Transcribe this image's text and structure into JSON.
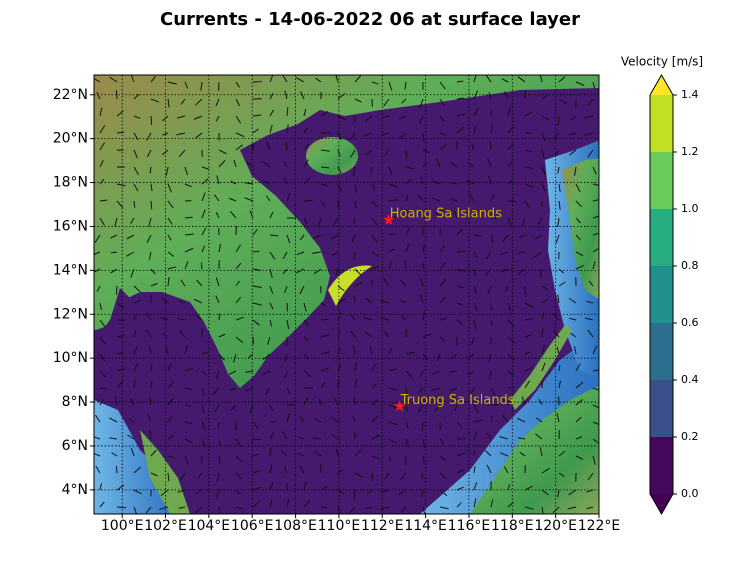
{
  "title": "Currents - 14-06-2022 06 at surface layer",
  "map": {
    "lonlim": [
      98.7,
      122
    ],
    "latlim": [
      2.9,
      22.9
    ],
    "lon_ticks": [
      {
        "value": 100,
        "label": "100°E"
      },
      {
        "value": 102,
        "label": "102°E"
      },
      {
        "value": 104,
        "label": "104°E"
      },
      {
        "value": 106,
        "label": "106°E"
      },
      {
        "value": 108,
        "label": "108°E"
      },
      {
        "value": 110,
        "label": "110°E"
      },
      {
        "value": 112,
        "label": "112°E"
      },
      {
        "value": 114,
        "label": "114°E"
      },
      {
        "value": 116,
        "label": "116°E"
      },
      {
        "value": 118,
        "label": "118°E"
      },
      {
        "value": 120,
        "label": "120°E"
      },
      {
        "value": 122,
        "label": "122°E"
      }
    ],
    "lat_ticks": [
      {
        "value": 4,
        "label": "4°N"
      },
      {
        "value": 6,
        "label": "6°N"
      },
      {
        "value": 8,
        "label": "8°N"
      },
      {
        "value": 10,
        "label": "10°N"
      },
      {
        "value": 12,
        "label": "12°N"
      },
      {
        "value": 14,
        "label": "14°N"
      },
      {
        "value": 16,
        "label": "16°N"
      },
      {
        "value": 18,
        "label": "18°N"
      },
      {
        "value": 20,
        "label": "20°N"
      },
      {
        "value": 22,
        "label": "22°N"
      }
    ],
    "grid": true,
    "markers": [
      {
        "label": "Hoang Sa Islands",
        "lon": 112.3,
        "lat": 16.3
      },
      {
        "label": "Truong Sa Islands",
        "lon": 112.8,
        "lat": 7.8
      }
    ]
  },
  "colorbar": {
    "label": "Velocity [m/s]",
    "ticks": [
      {
        "value": 0,
        "label": "0.0"
      },
      0.2,
      0.4,
      0.6,
      0.8,
      {
        "value": 1,
        "label": "1.0"
      },
      1.2,
      1.4
    ],
    "colors": [
      "#46085c",
      "#3b4f8a",
      "#2c6f8e",
      "#22908c",
      "#27ad81",
      "#6acd5b",
      "#c2df23"
    ],
    "extend_colors": [
      "#440154",
      "#fde725"
    ]
  }
}
